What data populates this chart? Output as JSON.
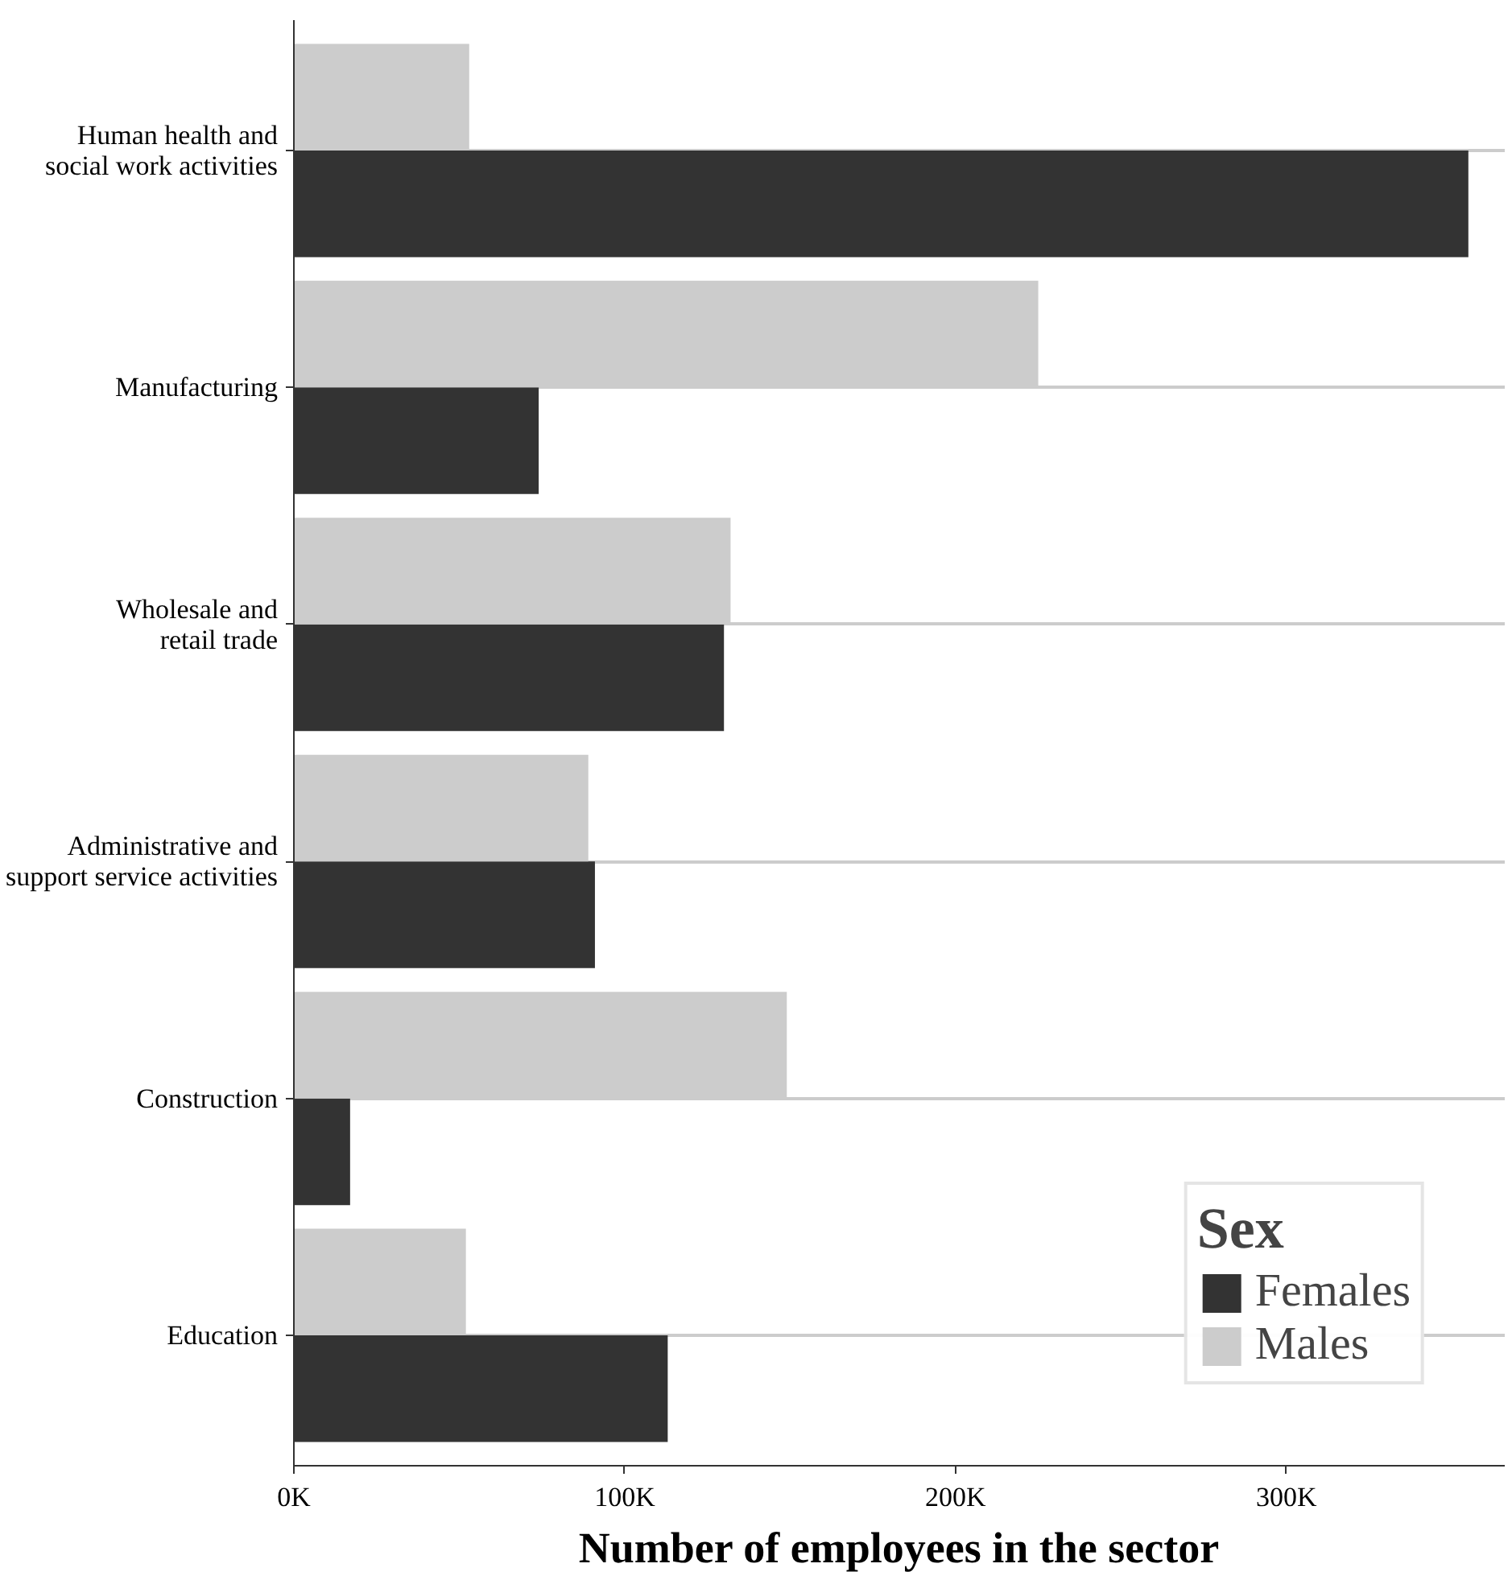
{
  "chart_data": {
    "type": "bar",
    "orientation": "horizontal",
    "categories": [
      "Human health and\nsocial work activities",
      "Manufacturing",
      "Wholesale and\nretail trade",
      "Administrative and\nsupport service activities",
      "Construction",
      "Education"
    ],
    "series": [
      {
        "name": "Females",
        "color": "#333333",
        "values": [
          355000,
          74000,
          130000,
          91000,
          17000,
          113000
        ]
      },
      {
        "name": "Males",
        "color": "#cccccc",
        "values": [
          53000,
          225000,
          132000,
          89000,
          149000,
          52000
        ]
      }
    ],
    "xlabel": "Number of employees in the sector",
    "legend_title": "Sex",
    "xlim": [
      0,
      366000
    ],
    "xticks": [
      {
        "value": 0,
        "label": "0K"
      },
      {
        "value": 100000,
        "label": "100K"
      },
      {
        "value": 200000,
        "label": "200K"
      },
      {
        "value": 300000,
        "label": "300K"
      }
    ],
    "grid": "y",
    "legend": "bottom right"
  }
}
